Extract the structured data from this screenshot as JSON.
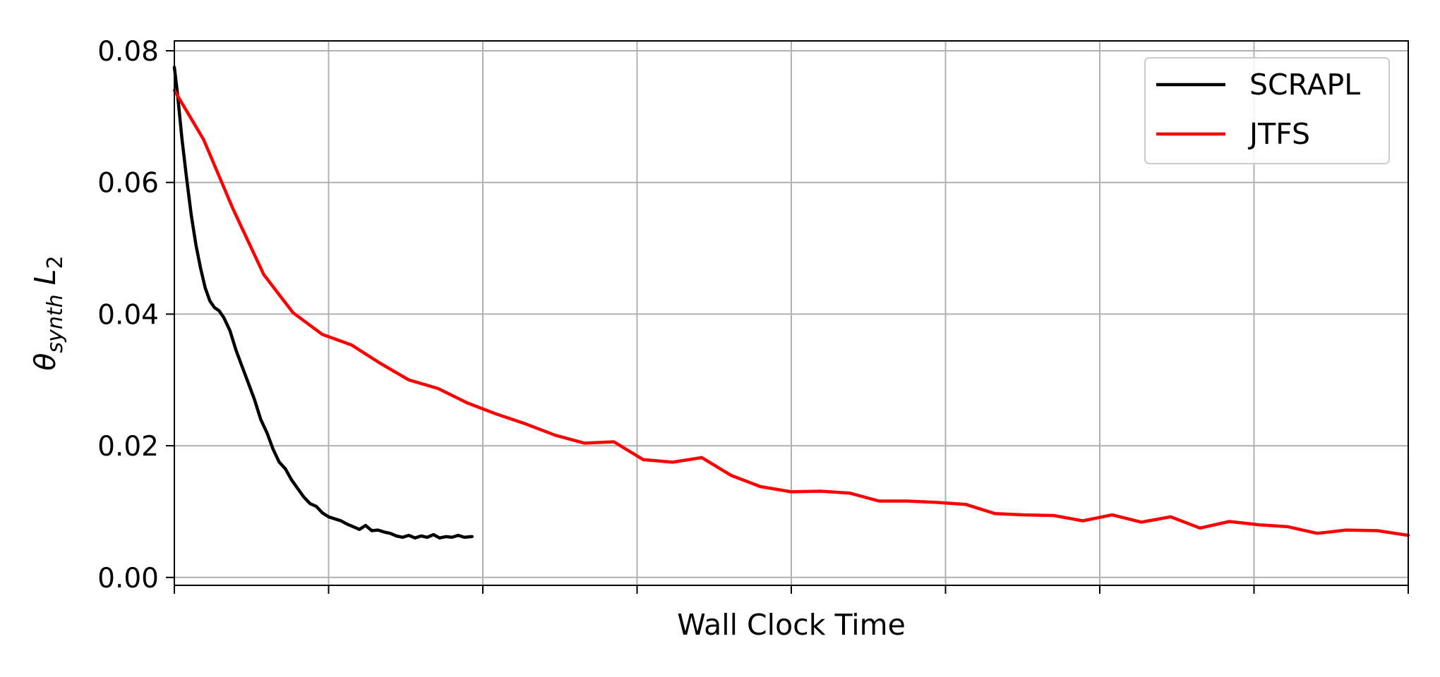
{
  "chart_data": {
    "type": "line",
    "xlabel": "Wall Clock Time",
    "ylabel_main": "θ",
    "ylabel_sub": "synth",
    "ylabel_var": "L",
    "ylabel_var_sub": "2",
    "ylim": [
      -0.0012,
      0.0815
    ],
    "xlim": [
      0,
      8
    ],
    "x_ticks": [
      0,
      1,
      2,
      3,
      4,
      5,
      6,
      7,
      8
    ],
    "x_tick_labels_shown": false,
    "y_ticks": [
      0.0,
      0.02,
      0.04,
      0.06,
      0.08
    ],
    "y_tick_labels": [
      "0.00",
      "0.02",
      "0.04",
      "0.06",
      "0.08"
    ],
    "grid": true,
    "legend_position": "top-right",
    "series": [
      {
        "name": "SCRAPL",
        "color": "#000000",
        "x": [
          0.0,
          0.02,
          0.05,
          0.08,
          0.11,
          0.14,
          0.17,
          0.2,
          0.23,
          0.26,
          0.29,
          0.32,
          0.36,
          0.4,
          0.44,
          0.48,
          0.52,
          0.56,
          0.6,
          0.64,
          0.68,
          0.72,
          0.76,
          0.8,
          0.84,
          0.88,
          0.92,
          0.96,
          1.0,
          1.04,
          1.08,
          1.12,
          1.16,
          1.2,
          1.24,
          1.28,
          1.32,
          1.36,
          1.4,
          1.44,
          1.48,
          1.52,
          1.56,
          1.6,
          1.64,
          1.68,
          1.72,
          1.76,
          1.8,
          1.84,
          1.88,
          1.93
        ],
        "values": [
          0.0775,
          0.0735,
          0.0665,
          0.0605,
          0.055,
          0.0505,
          0.047,
          0.044,
          0.042,
          0.041,
          0.0405,
          0.0395,
          0.0375,
          0.0345,
          0.032,
          0.0295,
          0.027,
          0.024,
          0.022,
          0.0195,
          0.0175,
          0.0165,
          0.0148,
          0.0135,
          0.0122,
          0.0112,
          0.0108,
          0.0098,
          0.0092,
          0.0089,
          0.0086,
          0.0081,
          0.0077,
          0.0073,
          0.0079,
          0.0071,
          0.0072,
          0.0069,
          0.0067,
          0.0063,
          0.0061,
          0.0064,
          0.006,
          0.0063,
          0.0061,
          0.0065,
          0.006,
          0.0062,
          0.0061,
          0.0064,
          0.0061,
          0.0062
        ]
      },
      {
        "name": "JTFS",
        "color": "#ff0000",
        "x": [
          0.0,
          0.19,
          0.38,
          0.58,
          0.77,
          0.96,
          1.15,
          1.33,
          1.52,
          1.71,
          1.9,
          2.09,
          2.28,
          2.47,
          2.66,
          2.85,
          3.04,
          3.23,
          3.42,
          3.61,
          3.8,
          4.0,
          4.19,
          4.38,
          4.57,
          4.75,
          4.94,
          5.13,
          5.32,
          5.51,
          5.7,
          5.89,
          6.08,
          6.27,
          6.46,
          6.65,
          6.84,
          7.03,
          7.22,
          7.41,
          7.6,
          7.8,
          8.0
        ],
        "values": [
          0.074,
          0.0665,
          0.056,
          0.046,
          0.0402,
          0.0369,
          0.0353,
          0.0326,
          0.03,
          0.0287,
          0.0265,
          0.0248,
          0.0233,
          0.0216,
          0.0204,
          0.0206,
          0.0179,
          0.0175,
          0.0182,
          0.0155,
          0.0138,
          0.013,
          0.0131,
          0.0128,
          0.0116,
          0.0116,
          0.0114,
          0.0111,
          0.0097,
          0.0095,
          0.0094,
          0.0086,
          0.0095,
          0.0084,
          0.0092,
          0.0075,
          0.0085,
          0.008,
          0.0077,
          0.0067,
          0.0072,
          0.0071,
          0.0064
        ]
      }
    ]
  }
}
